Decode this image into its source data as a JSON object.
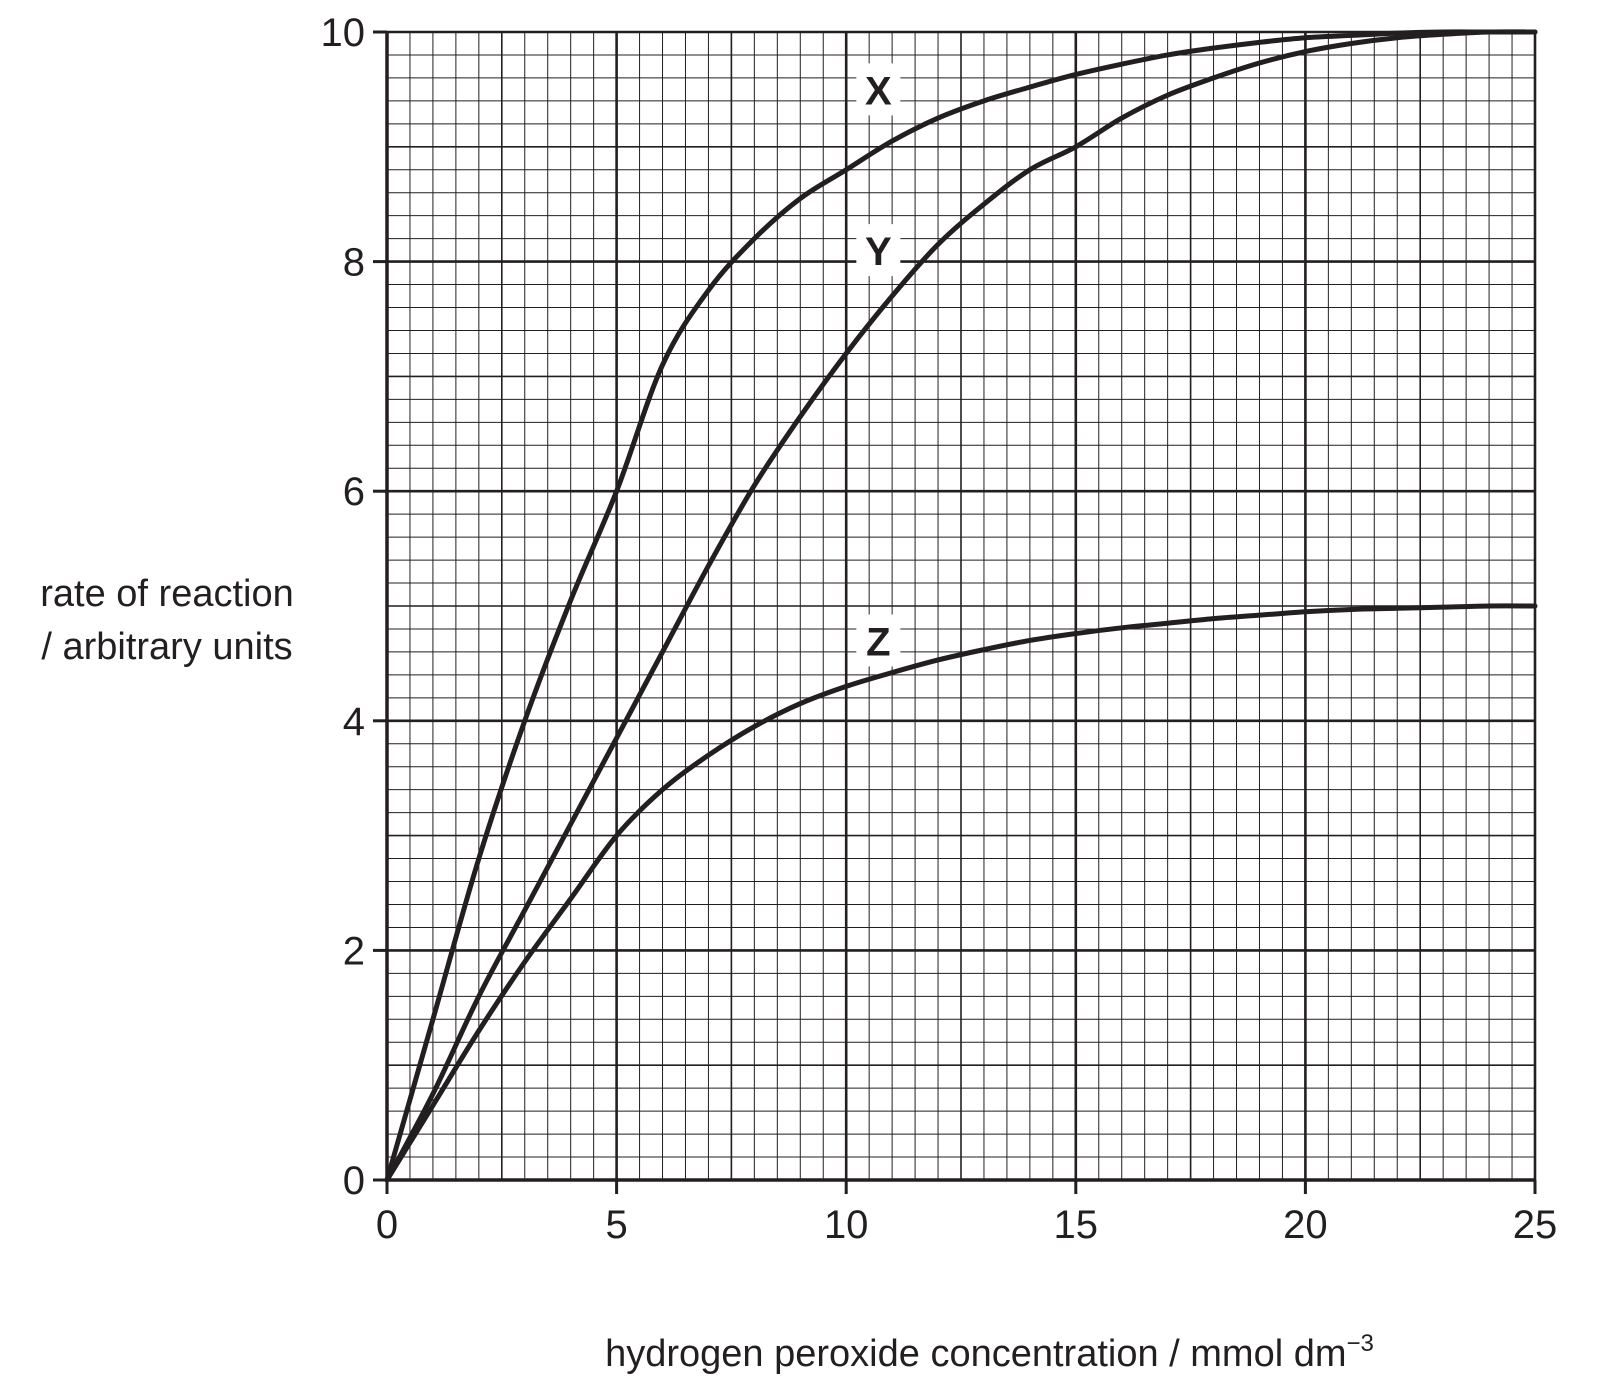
{
  "chart_data": {
    "type": "line",
    "title": "",
    "xlabel_main": "hydrogen peroxide concentration / mmol dm",
    "xlabel_exponent": "−3",
    "ylabel_line1": "rate of reaction",
    "ylabel_line2": "/ arbitrary units",
    "xlim": [
      0,
      25
    ],
    "ylim": [
      0,
      10
    ],
    "x_ticks": [
      0,
      5,
      10,
      15,
      20,
      25
    ],
    "y_ticks": [
      0,
      2,
      4,
      6,
      8,
      10
    ],
    "x_tick_labels": [
      "0",
      "5",
      "10",
      "15",
      "20",
      "25"
    ],
    "y_tick_labels": [
      "0",
      "2",
      "4",
      "6",
      "8",
      "10"
    ],
    "grid": {
      "major_x": 5,
      "minor_x": 0.5,
      "major_y": 2,
      "minor_y": 0.2
    },
    "legend": "none",
    "line_color": "#231f20",
    "series": [
      {
        "name": "X",
        "label_at": [
          10.7,
          9.5
        ],
        "x": [
          0,
          1,
          2,
          3,
          4,
          5,
          6,
          7,
          8,
          9,
          10,
          11,
          12,
          13,
          14,
          15,
          16,
          17,
          18,
          19,
          20,
          21,
          22,
          23,
          24,
          25
        ],
        "y": [
          0,
          1.4,
          2.8,
          4.0,
          5.05,
          6.0,
          7.1,
          7.75,
          8.2,
          8.55,
          8.8,
          9.05,
          9.25,
          9.4,
          9.52,
          9.63,
          9.72,
          9.8,
          9.86,
          9.91,
          9.95,
          9.97,
          9.99,
          10.0,
          10.0,
          10.0
        ]
      },
      {
        "name": "Y",
        "label_at": [
          10.7,
          8.1
        ],
        "x": [
          0,
          1,
          2,
          3,
          4,
          5,
          6,
          7,
          8,
          9,
          10,
          11,
          12,
          13,
          14,
          15,
          16,
          17,
          18,
          19,
          20,
          21,
          22,
          23,
          24,
          25
        ],
        "y": [
          0,
          0.75,
          1.6,
          2.35,
          3.1,
          3.85,
          4.6,
          5.35,
          6.05,
          6.65,
          7.2,
          7.7,
          8.15,
          8.5,
          8.8,
          9.0,
          9.25,
          9.45,
          9.6,
          9.73,
          9.83,
          9.9,
          9.95,
          9.98,
          10.0,
          10.0
        ]
      },
      {
        "name": "Z",
        "label_at": [
          10.7,
          4.7
        ],
        "x": [
          0,
          1,
          2,
          3,
          4,
          5,
          6,
          7,
          8,
          9,
          10,
          11,
          12,
          13,
          14,
          15,
          16,
          17,
          18,
          19,
          20,
          21,
          22,
          23,
          24,
          25
        ],
        "y": [
          0,
          0.65,
          1.3,
          1.9,
          2.45,
          3.0,
          3.4,
          3.7,
          3.95,
          4.15,
          4.3,
          4.42,
          4.53,
          4.62,
          4.7,
          4.76,
          4.81,
          4.85,
          4.89,
          4.92,
          4.95,
          4.97,
          4.98,
          4.99,
          5.0,
          5.0
        ]
      }
    ]
  }
}
